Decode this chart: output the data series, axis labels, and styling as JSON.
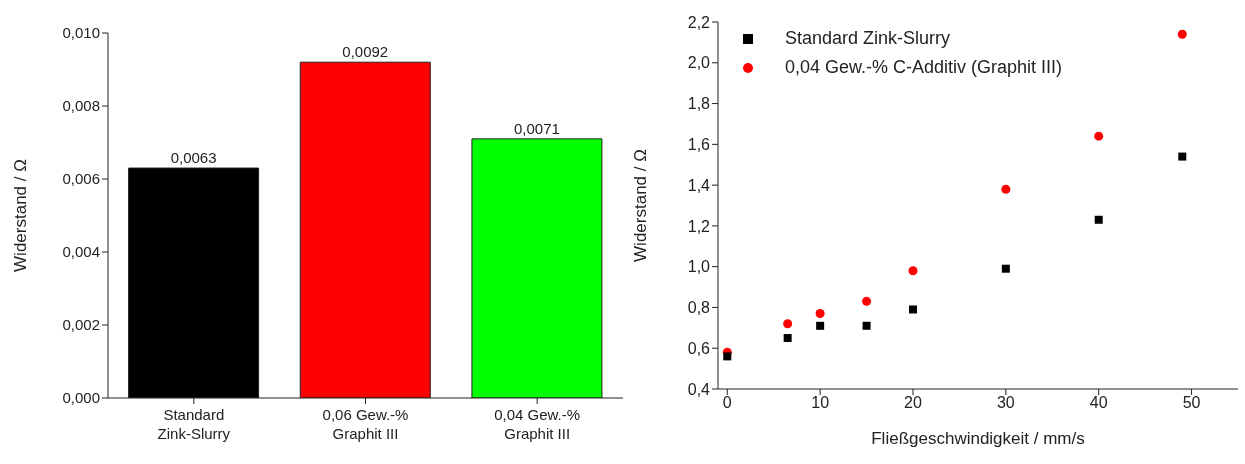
{
  "chart_data": [
    {
      "type": "bar",
      "ylabel": "Widerstand / Ω",
      "categories": [
        "Standard\nZink-Slurry",
        "0,06 Gew.-%\nGraphit III",
        "0,04 Gew.-%\nGraphit III"
      ],
      "values": [
        0.0063,
        0.0092,
        0.0071
      ],
      "colors": [
        "#000000",
        "#ff0000",
        "#00ff00"
      ],
      "value_labels": [
        "0,0063",
        "0,0092",
        "0,0071"
      ],
      "ylim": [
        0,
        0.01
      ],
      "yticks": [
        {
          "value": 0,
          "label": "0,000"
        },
        {
          "value": 0.002,
          "label": "0,002"
        },
        {
          "value": 0.004,
          "label": "0,004"
        },
        {
          "value": 0.006,
          "label": "0,006"
        },
        {
          "value": 0.008,
          "label": "0,008"
        },
        {
          "value": 0.01,
          "label": "0,010"
        }
      ],
      "grid": false,
      "legend": false
    },
    {
      "type": "scatter",
      "xlabel": "Fließgeschwindigkeit / mm/s",
      "ylabel": "Widerstand / Ω",
      "x": [
        0,
        6.5,
        10,
        15,
        20,
        30,
        40,
        49
      ],
      "series": [
        {
          "name": "Standard Zink-Slurry",
          "color": "#000000",
          "marker": "square",
          "values": [
            0.56,
            0.65,
            0.71,
            0.71,
            0.79,
            0.99,
            1.23,
            1.54
          ]
        },
        {
          "name": "0,04 Gew.-% C-Additiv (Graphit III)",
          "color": "#ff0000",
          "marker": "circle",
          "values": [
            0.58,
            0.72,
            0.77,
            0.83,
            0.98,
            1.38,
            1.64,
            2.14
          ]
        }
      ],
      "xlim": [
        -1,
        55
      ],
      "xticks": [
        0,
        10,
        20,
        30,
        40,
        50
      ],
      "ylim": [
        0.4,
        2.2
      ],
      "yticks": [
        {
          "value": 0.4,
          "label": "0,4"
        },
        {
          "value": 0.6,
          "label": "0,6"
        },
        {
          "value": 0.8,
          "label": "0,8"
        },
        {
          "value": 1.0,
          "label": "1,0"
        },
        {
          "value": 1.2,
          "label": "1,2"
        },
        {
          "value": 1.4,
          "label": "1,4"
        },
        {
          "value": 1.6,
          "label": "1,6"
        },
        {
          "value": 1.8,
          "label": "1,8"
        },
        {
          "value": 2.0,
          "label": "2,0"
        },
        {
          "value": 2.2,
          "label": "2,2"
        }
      ],
      "grid": false,
      "legend": "top left"
    }
  ]
}
